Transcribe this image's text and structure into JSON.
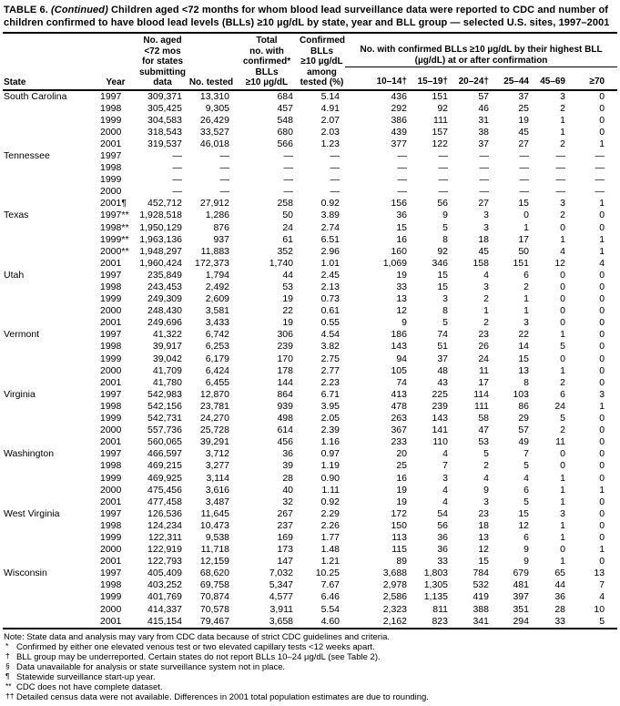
{
  "title": {
    "part1": "TABLE 6. ",
    "part2": "(Continued)",
    "part3": " Children aged <72 months for whom blood lead surveillance data were reported to CDC and number of children confirmed to have blood lead levels (BLLs) ≥10 µg/dL by state, year and BLL group — selected U.S. sites, 1997–2001"
  },
  "columns": {
    "state": "State",
    "year": "Year",
    "population": "No. aged\n<72 mos\nfor states\nsubmitting\ndata",
    "tested": "No. tested",
    "confirmed_total": "Total\nno. with\nconfirmed*\nBLLs\n≥10 µg/dL",
    "confirmed_pct": "Confirmed\nBLLs\n≥10 µg/dL\namong\ntested (%)",
    "group_header": "No. with confirmed BLLs ≥10 µg/dL by their highest BLL (µg/dL) at or after confirmation",
    "bll_groups": [
      "10–14†",
      "15–19†",
      "20–24†",
      "25–44",
      "45–69",
      "≥70"
    ]
  },
  "states": [
    {
      "name": "South Carolina",
      "rows": [
        {
          "year": "1997",
          "values": [
            "309,371",
            "13,310",
            "684",
            "5.14",
            "436",
            "151",
            "57",
            "37",
            "3",
            "0"
          ]
        },
        {
          "year": "1998",
          "values": [
            "305,425",
            "9,305",
            "457",
            "4.91",
            "292",
            "92",
            "46",
            "25",
            "2",
            "0"
          ]
        },
        {
          "year": "1999",
          "values": [
            "304,583",
            "26,429",
            "548",
            "2.07",
            "386",
            "111",
            "31",
            "19",
            "1",
            "0"
          ]
        },
        {
          "year": "2000",
          "values": [
            "318,543",
            "33,527",
            "680",
            "2.03",
            "439",
            "157",
            "38",
            "45",
            "1",
            "0"
          ]
        },
        {
          "year": "2001",
          "values": [
            "319,537",
            "46,018",
            "566",
            "1.23",
            "377",
            "122",
            "37",
            "27",
            "2",
            "1"
          ]
        }
      ]
    },
    {
      "name": "Tennessee",
      "rows": [
        {
          "year": "1997",
          "values": [
            "—",
            "—",
            "—",
            "—",
            "—",
            "—",
            "—",
            "—",
            "—",
            "—"
          ]
        },
        {
          "year": "1998",
          "values": [
            "—",
            "—",
            "—",
            "—",
            "—",
            "—",
            "—",
            "—",
            "—",
            "—"
          ]
        },
        {
          "year": "1999",
          "values": [
            "—",
            "—",
            "—",
            "—",
            "—",
            "—",
            "—",
            "—",
            "—",
            "—"
          ]
        },
        {
          "year": "2000",
          "values": [
            "—",
            "—",
            "—",
            "—",
            "—",
            "—",
            "—",
            "—",
            "—",
            "—"
          ]
        },
        {
          "year": "2001¶",
          "values": [
            "452,712",
            "27,912",
            "258",
            "0.92",
            "156",
            "56",
            "27",
            "15",
            "3",
            "1"
          ]
        }
      ]
    },
    {
      "name": "Texas",
      "rows": [
        {
          "year": "1997**",
          "values": [
            "1,928,518",
            "1,286",
            "50",
            "3.89",
            "36",
            "9",
            "3",
            "0",
            "2",
            "0"
          ]
        },
        {
          "year": "1998**",
          "values": [
            "1,950,129",
            "876",
            "24",
            "2.74",
            "15",
            "5",
            "3",
            "1",
            "0",
            "0"
          ]
        },
        {
          "year": "1999**",
          "values": [
            "1,963,136",
            "937",
            "61",
            "6.51",
            "16",
            "8",
            "18",
            "17",
            "1",
            "1"
          ]
        },
        {
          "year": "2000**",
          "values": [
            "1,948,297",
            "11,883",
            "352",
            "2.96",
            "160",
            "92",
            "45",
            "50",
            "4",
            "1"
          ]
        },
        {
          "year": "2001",
          "values": [
            "1,960,424",
            "172,373",
            "1,740",
            "1.01",
            "1,069",
            "346",
            "158",
            "151",
            "12",
            "4"
          ]
        }
      ]
    },
    {
      "name": "Utah",
      "rows": [
        {
          "year": "1997",
          "values": [
            "235,849",
            "1,794",
            "44",
            "2.45",
            "19",
            "15",
            "4",
            "6",
            "0",
            "0"
          ]
        },
        {
          "year": "1998",
          "values": [
            "243,453",
            "2,492",
            "53",
            "2.13",
            "33",
            "15",
            "3",
            "2",
            "0",
            "0"
          ]
        },
        {
          "year": "1999",
          "values": [
            "249,309",
            "2,609",
            "19",
            "0.73",
            "13",
            "3",
            "2",
            "1",
            "0",
            "0"
          ]
        },
        {
          "year": "2000",
          "values": [
            "248,430",
            "3,581",
            "22",
            "0.61",
            "12",
            "8",
            "1",
            "1",
            "0",
            "0"
          ]
        },
        {
          "year": "2001",
          "values": [
            "249,696",
            "3,433",
            "19",
            "0.55",
            "9",
            "5",
            "2",
            "3",
            "0",
            "0"
          ]
        }
      ]
    },
    {
      "name": "Vermont",
      "rows": [
        {
          "year": "1997",
          "values": [
            "41,322",
            "6,742",
            "306",
            "4.54",
            "186",
            "74",
            "23",
            "22",
            "1",
            "0"
          ]
        },
        {
          "year": "1998",
          "values": [
            "39,917",
            "6,253",
            "239",
            "3.82",
            "143",
            "51",
            "26",
            "14",
            "5",
            "0"
          ]
        },
        {
          "year": "1999",
          "values": [
            "39,042",
            "6,179",
            "170",
            "2.75",
            "94",
            "37",
            "24",
            "15",
            "0",
            "0"
          ]
        },
        {
          "year": "2000",
          "values": [
            "41,709",
            "6,424",
            "178",
            "2.77",
            "105",
            "48",
            "11",
            "13",
            "1",
            "0"
          ]
        },
        {
          "year": "2001",
          "values": [
            "41,780",
            "6,455",
            "144",
            "2.23",
            "74",
            "43",
            "17",
            "8",
            "2",
            "0"
          ]
        }
      ]
    },
    {
      "name": "Virginia",
      "rows": [
        {
          "year": "1997",
          "values": [
            "542,983",
            "12,870",
            "864",
            "6.71",
            "413",
            "225",
            "114",
            "103",
            "6",
            "3"
          ]
        },
        {
          "year": "1998",
          "values": [
            "542,156",
            "23,781",
            "939",
            "3.95",
            "478",
            "239",
            "111",
            "86",
            "24",
            "1"
          ]
        },
        {
          "year": "1999",
          "values": [
            "542,731",
            "24,270",
            "498",
            "2.05",
            "263",
            "143",
            "58",
            "29",
            "5",
            "0"
          ]
        },
        {
          "year": "2000",
          "values": [
            "557,736",
            "25,728",
            "614",
            "2.39",
            "367",
            "141",
            "47",
            "57",
            "2",
            "0"
          ]
        },
        {
          "year": "2001",
          "values": [
            "560,065",
            "39,291",
            "456",
            "1.16",
            "233",
            "110",
            "53",
            "49",
            "11",
            "0"
          ]
        }
      ]
    },
    {
      "name": "Washington",
      "rows": [
        {
          "year": "1997",
          "values": [
            "466,597",
            "3,712",
            "36",
            "0.97",
            "20",
            "4",
            "5",
            "7",
            "0",
            "0"
          ]
        },
        {
          "year": "1998",
          "values": [
            "469,215",
            "3,277",
            "39",
            "1.19",
            "25",
            "7",
            "2",
            "5",
            "0",
            "0"
          ]
        },
        {
          "year": "1999",
          "values": [
            "469,925",
            "3,114",
            "28",
            "0.90",
            "16",
            "3",
            "4",
            "4",
            "1",
            "0"
          ]
        },
        {
          "year": "2000",
          "values": [
            "475,456",
            "3,616",
            "40",
            "1.11",
            "19",
            "4",
            "9",
            "6",
            "1",
            "1"
          ]
        },
        {
          "year": "2001",
          "values": [
            "477,458",
            "3,487",
            "32",
            "0.92",
            "19",
            "4",
            "3",
            "5",
            "1",
            "0"
          ]
        }
      ]
    },
    {
      "name": "West Virginia",
      "rows": [
        {
          "year": "1997",
          "values": [
            "126,536",
            "11,645",
            "267",
            "2.29",
            "172",
            "54",
            "23",
            "15",
            "3",
            "0"
          ]
        },
        {
          "year": "1998",
          "values": [
            "124,234",
            "10,473",
            "237",
            "2.26",
            "150",
            "56",
            "18",
            "12",
            "1",
            "0"
          ]
        },
        {
          "year": "1999",
          "values": [
            "122,311",
            "9,538",
            "169",
            "1.77",
            "113",
            "36",
            "13",
            "6",
            "1",
            "0"
          ]
        },
        {
          "year": "2000",
          "values": [
            "122,919",
            "11,718",
            "173",
            "1.48",
            "115",
            "36",
            "12",
            "9",
            "0",
            "1"
          ]
        },
        {
          "year": "2001",
          "values": [
            "122,793",
            "12,159",
            "147",
            "1.21",
            "89",
            "33",
            "15",
            "9",
            "1",
            "0"
          ]
        }
      ]
    },
    {
      "name": "Wisconsin",
      "rows": [
        {
          "year": "1997",
          "values": [
            "405,409",
            "68,620",
            "7,032",
            "10.25",
            "3,688",
            "1,803",
            "784",
            "679",
            "65",
            "13"
          ]
        },
        {
          "year": "1998",
          "values": [
            "403,252",
            "69,758",
            "5,347",
            "7.67",
            "2,978",
            "1,305",
            "532",
            "481",
            "44",
            "7"
          ]
        },
        {
          "year": "1999",
          "values": [
            "401,769",
            "70,874",
            "4,577",
            "6.46",
            "2,586",
            "1,135",
            "419",
            "397",
            "36",
            "4"
          ]
        },
        {
          "year": "2000",
          "values": [
            "414,337",
            "70,578",
            "3,911",
            "5.54",
            "2,323",
            "811",
            "388",
            "351",
            "28",
            "10"
          ]
        },
        {
          "year": "2001",
          "values": [
            "415,154",
            "79,467",
            "3,658",
            "4.60",
            "2,162",
            "823",
            "341",
            "294",
            "33",
            "5"
          ]
        }
      ]
    }
  ],
  "footnotes": {
    "note": "Note: State data and analysis may vary from CDC data because of strict CDC guidelines and criteria.",
    "items": [
      {
        "marker": "*",
        "text": "Confirmed by either one elevated venous test or two elevated capillary tests <12 weeks apart."
      },
      {
        "marker": "†",
        "text": "BLL group may be underreported. Certain states do not report BLLs 10–24 µg/dL (see Table 2)."
      },
      {
        "marker": "§",
        "text": "Data unavailable for analysis or state surveillance system not in place."
      },
      {
        "marker": "¶",
        "text": "Statewide surveillance start-up year."
      },
      {
        "marker": "**",
        "text": "CDC does not have complete dataset."
      },
      {
        "marker": "††",
        "text": "Detailed census data were not available. Differences in 2001 total population estimates are due to rounding."
      }
    ]
  }
}
